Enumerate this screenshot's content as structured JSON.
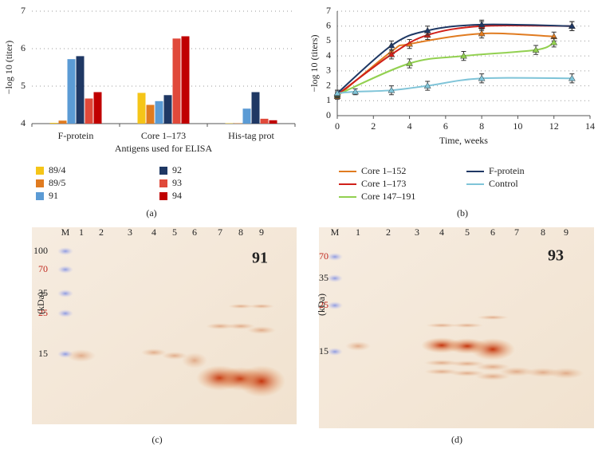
{
  "chart_data": [
    {
      "type": "bar",
      "panel_label": "(a)",
      "ylabel": "−log 10 (titer)",
      "xlabel": "Antigens used for ELISA",
      "categories": [
        "F-protein",
        "Core 1–173",
        "His-tag prot"
      ],
      "series": [
        {
          "name": "89/4",
          "color": "#f5c518",
          "values": [
            4.02,
            4.82,
            4.01
          ]
        },
        {
          "name": "89/5",
          "color": "#e07b20",
          "values": [
            4.08,
            4.5,
            4.01
          ]
        },
        {
          "name": "91",
          "color": "#5b9bd5",
          "values": [
            5.72,
            4.6,
            4.4
          ]
        },
        {
          "name": "92",
          "color": "#1f3864",
          "values": [
            5.8,
            4.76,
            4.84
          ]
        },
        {
          "name": "93",
          "color": "#e0493a",
          "values": [
            4.67,
            6.27,
            4.13
          ]
        },
        {
          "name": "94",
          "color": "#c00000",
          "values": [
            4.84,
            6.33,
            4.09
          ]
        }
      ],
      "ylim": [
        4,
        7
      ],
      "yticks": [
        4,
        5,
        6,
        7
      ],
      "grid": true
    },
    {
      "type": "line",
      "panel_label": "(b)",
      "ylabel": "−log 10 (titers)",
      "xlabel": "Time, weeks",
      "series": [
        {
          "name": "Core 1–152",
          "color": "#e07b20",
          "x": [
            0,
            3,
            4,
            8,
            12
          ],
          "values": [
            1.3,
            4.3,
            4.8,
            5.5,
            5.3
          ],
          "errors": [
            0.2,
            0.3,
            0.3,
            0.3,
            0.3
          ]
        },
        {
          "name": "Core 1–173",
          "color": "#d0201a",
          "x": [
            0,
            3,
            5,
            8,
            13
          ],
          "values": [
            1.4,
            4.1,
            5.4,
            6.0,
            6.0
          ],
          "errors": [
            0.2,
            0.3,
            0.3,
            0.3,
            0.3
          ]
        },
        {
          "name": "Core 147–191",
          "color": "#92d050",
          "x": [
            0,
            4,
            7,
            11,
            12
          ],
          "values": [
            1.4,
            3.5,
            4.0,
            4.4,
            4.9
          ],
          "errors": [
            0.2,
            0.3,
            0.3,
            0.3,
            0.3
          ]
        },
        {
          "name": "F-protein",
          "color": "#1f3864",
          "x": [
            0,
            3,
            5,
            8,
            13
          ],
          "values": [
            1.5,
            4.7,
            5.7,
            6.1,
            6.0
          ],
          "errors": [
            0.2,
            0.3,
            0.3,
            0.3,
            0.3
          ]
        },
        {
          "name": "Control",
          "color": "#7fc4d8",
          "x": [
            0,
            1,
            3,
            5,
            8,
            13
          ],
          "values": [
            1.5,
            1.6,
            1.7,
            2.0,
            2.5,
            2.5
          ],
          "errors": [
            0.2,
            0.2,
            0.3,
            0.3,
            0.3,
            0.3
          ]
        }
      ],
      "xlim": [
        0,
        14
      ],
      "xticks": [
        0,
        2,
        4,
        6,
        8,
        10,
        12,
        14
      ],
      "ylim": [
        0,
        7
      ],
      "yticks": [
        0,
        1,
        2,
        3,
        4,
        5,
        6,
        7
      ],
      "grid": true
    }
  ],
  "gels": [
    {
      "panel_label": "(c)",
      "tag": "91",
      "unit": "(kDa)",
      "lanes": [
        "M",
        "1",
        "2",
        "3",
        "4",
        "5",
        "6",
        "7",
        "8",
        "9"
      ],
      "markers": [
        "100",
        "70",
        "35",
        "25",
        "15"
      ]
    },
    {
      "panel_label": "(d)",
      "tag": "93",
      "unit": "(kDa)",
      "lanes": [
        "M",
        "1",
        "2",
        "3",
        "4",
        "5",
        "6",
        "7",
        "8",
        "9"
      ],
      "markers": [
        "70",
        "35",
        "25",
        "15"
      ]
    }
  ]
}
